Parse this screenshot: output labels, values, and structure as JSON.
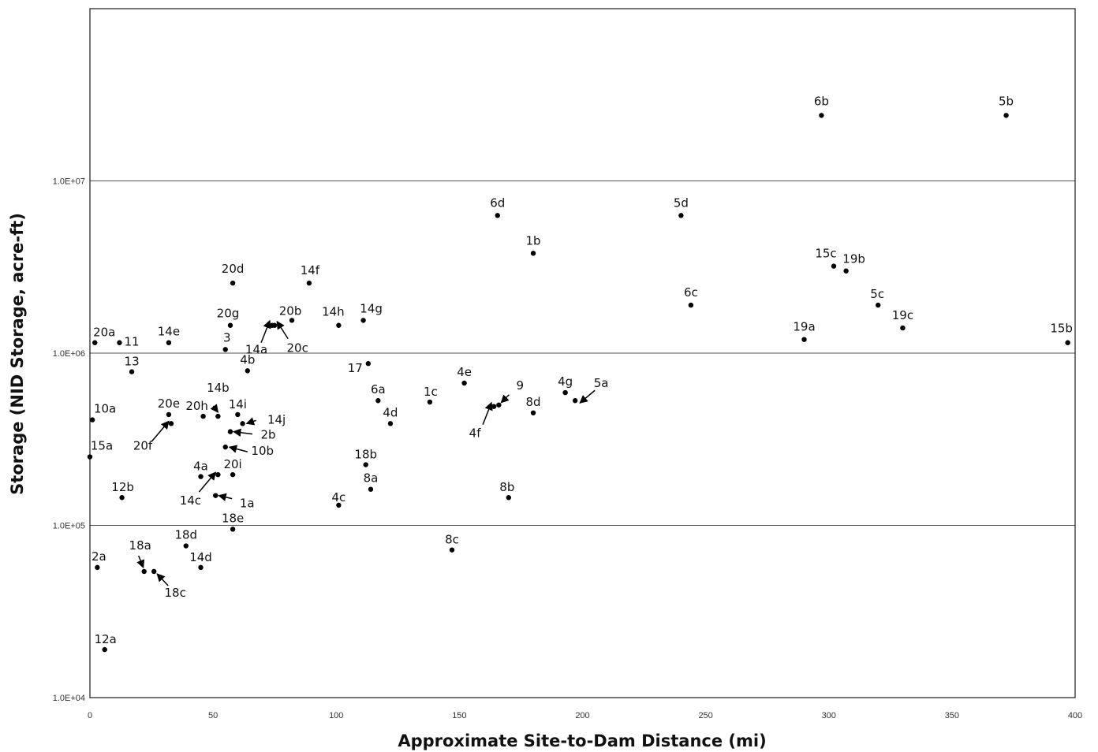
{
  "chart_data": {
    "type": "scatter",
    "title": "",
    "xlabel": "Approximate Site-to-Dam Distance (mi)",
    "ylabel": "Storage (NID Storage, acre-ft)",
    "xlim": [
      0,
      400
    ],
    "ylim": [
      10000,
      100000000
    ],
    "y_scale": "log",
    "x_ticks": [
      0,
      50,
      100,
      150,
      200,
      250,
      300,
      350,
      400
    ],
    "x_tick_labels": [
      "0",
      "50",
      "100",
      "150",
      "200",
      "250",
      "300",
      "350",
      "400"
    ],
    "y_ticks": [
      10000,
      100000,
      1000000,
      10000000
    ],
    "y_tick_labels": [
      "1.0E+04",
      "1.0E+05",
      "1.0E+06",
      "1.0E+07"
    ],
    "grid": "horizontal major gridlines",
    "legend": "none",
    "marker_color": "#000000",
    "points": [
      {
        "label": "6b",
        "x": 297,
        "y": 24000000
      },
      {
        "label": "5b",
        "x": 372,
        "y": 24000000
      },
      {
        "label": "6d",
        "x": 165.5,
        "y": 6300000
      },
      {
        "label": "5d",
        "x": 240,
        "y": 6300000
      },
      {
        "label": "1b",
        "x": 180,
        "y": 3800000
      },
      {
        "label": "15c",
        "x": 302,
        "y": 3200000
      },
      {
        "label": "19b",
        "x": 307,
        "y": 3000000
      },
      {
        "label": "20d",
        "x": 58,
        "y": 2550000
      },
      {
        "label": "14f",
        "x": 89,
        "y": 2550000
      },
      {
        "label": "6c",
        "x": 244,
        "y": 1900000
      },
      {
        "label": "5c",
        "x": 320,
        "y": 1900000
      },
      {
        "label": "20b",
        "x": 82,
        "y": 1550000
      },
      {
        "label": "14g",
        "x": 111,
        "y": 1550000
      },
      {
        "label": "14h",
        "x": 101,
        "y": 1450000
      },
      {
        "label": "20g",
        "x": 57,
        "y": 1450000
      },
      {
        "label": "14a",
        "x": 74,
        "y": 1450000
      },
      {
        "label": "20c",
        "x": 75,
        "y": 1450000
      },
      {
        "label": "19c",
        "x": 330,
        "y": 1400000
      },
      {
        "label": "19a",
        "x": 290,
        "y": 1200000
      },
      {
        "label": "20a",
        "x": 2,
        "y": 1150000
      },
      {
        "label": "11",
        "x": 12,
        "y": 1150000
      },
      {
        "label": "14e",
        "x": 32,
        "y": 1150000
      },
      {
        "label": "15b",
        "x": 397,
        "y": 1150000
      },
      {
        "label": "3",
        "x": 55,
        "y": 1050000
      },
      {
        "label": "17",
        "x": 113,
        "y": 870000
      },
      {
        "label": "4b",
        "x": 64,
        "y": 790000
      },
      {
        "label": "13",
        "x": 17,
        "y": 780000
      },
      {
        "label": "4e",
        "x": 152,
        "y": 670000
      },
      {
        "label": "4g",
        "x": 193,
        "y": 590000
      },
      {
        "label": "6a",
        "x": 117,
        "y": 530000
      },
      {
        "label": "5a",
        "x": 197,
        "y": 530000
      },
      {
        "label": "1c",
        "x": 138,
        "y": 520000
      },
      {
        "label": "9",
        "x": 166,
        "y": 500000
      },
      {
        "label": "4f",
        "x": 164,
        "y": 490000
      },
      {
        "label": "8d",
        "x": 180,
        "y": 450000
      },
      {
        "label": "20e",
        "x": 32,
        "y": 440000
      },
      {
        "label": "14i",
        "x": 60,
        "y": 440000
      },
      {
        "label": "20h",
        "x": 46,
        "y": 430000
      },
      {
        "label": "14b",
        "x": 52,
        "y": 430000
      },
      {
        "label": "10a",
        "x": 1,
        "y": 410000
      },
      {
        "label": "4d",
        "x": 122,
        "y": 390000
      },
      {
        "label": "20f",
        "x": 33,
        "y": 390000
      },
      {
        "label": "14j",
        "x": 62,
        "y": 390000
      },
      {
        "label": "2b",
        "x": 57,
        "y": 350000
      },
      {
        "label": "10b",
        "x": 55,
        "y": 285000
      },
      {
        "label": "15a",
        "x": 0,
        "y": 250000
      },
      {
        "label": "18b",
        "x": 112,
        "y": 225000
      },
      {
        "label": "20i",
        "x": 58,
        "y": 197000
      },
      {
        "label": "14c",
        "x": 52,
        "y": 197000
      },
      {
        "label": "4a",
        "x": 45,
        "y": 192000
      },
      {
        "label": "8a",
        "x": 114,
        "y": 162000
      },
      {
        "label": "1a",
        "x": 51,
        "y": 149000
      },
      {
        "label": "12b",
        "x": 13,
        "y": 145000
      },
      {
        "label": "8b",
        "x": 170,
        "y": 145000
      },
      {
        "label": "4c",
        "x": 101,
        "y": 131000
      },
      {
        "label": "18e",
        "x": 58,
        "y": 95000
      },
      {
        "label": "18d",
        "x": 39,
        "y": 76000
      },
      {
        "label": "8c",
        "x": 147,
        "y": 72000
      },
      {
        "label": "2a",
        "x": 3,
        "y": 57000
      },
      {
        "label": "14d",
        "x": 45,
        "y": 57000
      },
      {
        "label": "18a",
        "x": 22,
        "y": 54000
      },
      {
        "label": "18c",
        "x": 26,
        "y": 54000
      },
      {
        "label": "12a",
        "x": 6,
        "y": 19000
      }
    ]
  }
}
